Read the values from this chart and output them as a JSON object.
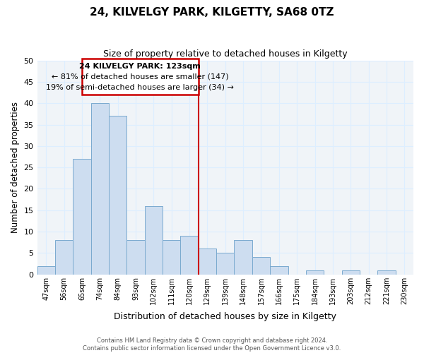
{
  "title": "24, KILVELGY PARK, KILGETTY, SA68 0TZ",
  "subtitle": "Size of property relative to detached houses in Kilgetty",
  "xlabel": "Distribution of detached houses by size in Kilgetty",
  "ylabel": "Number of detached properties",
  "bar_labels": [
    "47sqm",
    "56sqm",
    "65sqm",
    "74sqm",
    "84sqm",
    "93sqm",
    "102sqm",
    "111sqm",
    "120sqm",
    "129sqm",
    "139sqm",
    "148sqm",
    "157sqm",
    "166sqm",
    "175sqm",
    "184sqm",
    "193sqm",
    "203sqm",
    "212sqm",
    "221sqm",
    "230sqm"
  ],
  "bar_values": [
    2,
    8,
    27,
    40,
    37,
    8,
    16,
    8,
    9,
    6,
    5,
    8,
    4,
    2,
    0,
    1,
    0,
    1,
    0,
    1,
    0
  ],
  "bar_color": "#cdddf0",
  "bar_edge_color": "#7aaacf",
  "vline_color": "#cc0000",
  "annotation_title": "24 KILVELGY PARK: 123sqm",
  "annotation_line1": "← 81% of detached houses are smaller (147)",
  "annotation_line2": "19% of semi-detached houses are larger (34) →",
  "annotation_box_color": "#ffffff",
  "annotation_box_edge": "#cc0000",
  "ylim": [
    0,
    50
  ],
  "yticks": [
    0,
    5,
    10,
    15,
    20,
    25,
    30,
    35,
    40,
    45,
    50
  ],
  "footer_line1": "Contains HM Land Registry data © Crown copyright and database right 2024.",
  "footer_line2": "Contains public sector information licensed under the Open Government Licence v3.0.",
  "grid_color": "#ddeeff",
  "bg_color": "#f0f4f8"
}
